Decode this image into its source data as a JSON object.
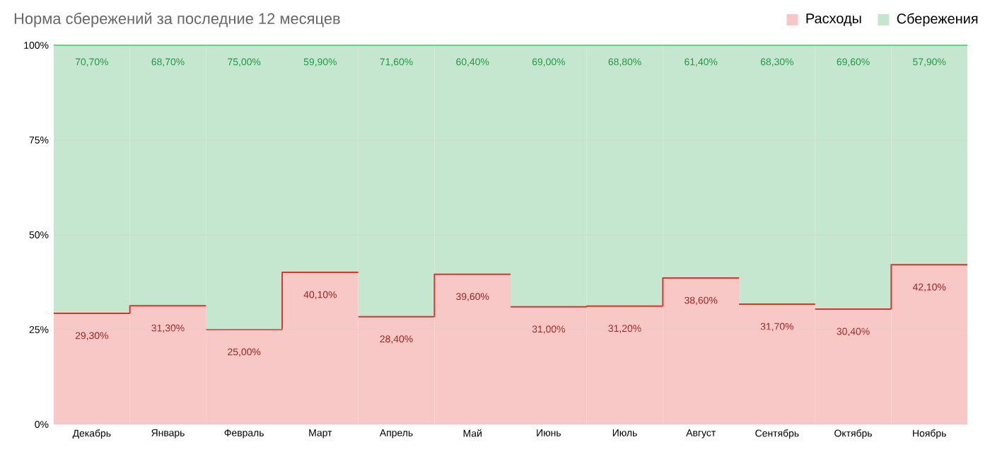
{
  "chart_data": {
    "type": "bar",
    "stacked": true,
    "title": "Норма сбережений за последние 12 месяцев",
    "categories": [
      "Декабрь",
      "Январь",
      "Февраль",
      "Март",
      "Апрель",
      "Май",
      "Июнь",
      "Июль",
      "Август",
      "Сентябрь",
      "Октябрь",
      "Ноябрь"
    ],
    "series": [
      {
        "name": "Расходы",
        "color": "#f8c8c6",
        "values": [
          29.3,
          31.3,
          25.0,
          40.1,
          28.4,
          39.6,
          31.0,
          31.2,
          38.6,
          31.7,
          30.4,
          42.1
        ],
        "value_labels": [
          "29,30%",
          "31,30%",
          "25,00%",
          "40,10%",
          "28,40%",
          "39,60%",
          "31,00%",
          "31,20%",
          "38,60%",
          "31,70%",
          "30,40%",
          "42,10%"
        ]
      },
      {
        "name": "Сбережения",
        "color": "#c6e7cf",
        "values": [
          70.7,
          68.7,
          75.0,
          59.9,
          71.6,
          60.4,
          69.0,
          68.8,
          61.4,
          68.3,
          69.6,
          57.9
        ],
        "value_labels": [
          "70,70%",
          "68,70%",
          "75,00%",
          "59,90%",
          "71,60%",
          "60,40%",
          "69,00%",
          "68,80%",
          "61,40%",
          "68,30%",
          "69,60%",
          "57,90%"
        ]
      }
    ],
    "ylim": [
      0,
      100
    ],
    "yticks": [
      {
        "value": 0,
        "label": "0%"
      },
      {
        "value": 25,
        "label": "25%"
      },
      {
        "value": 50,
        "label": "50%"
      },
      {
        "value": 75,
        "label": "75%"
      },
      {
        "value": 100,
        "label": "100%"
      }
    ],
    "grid": "y",
    "legend": "top right"
  }
}
